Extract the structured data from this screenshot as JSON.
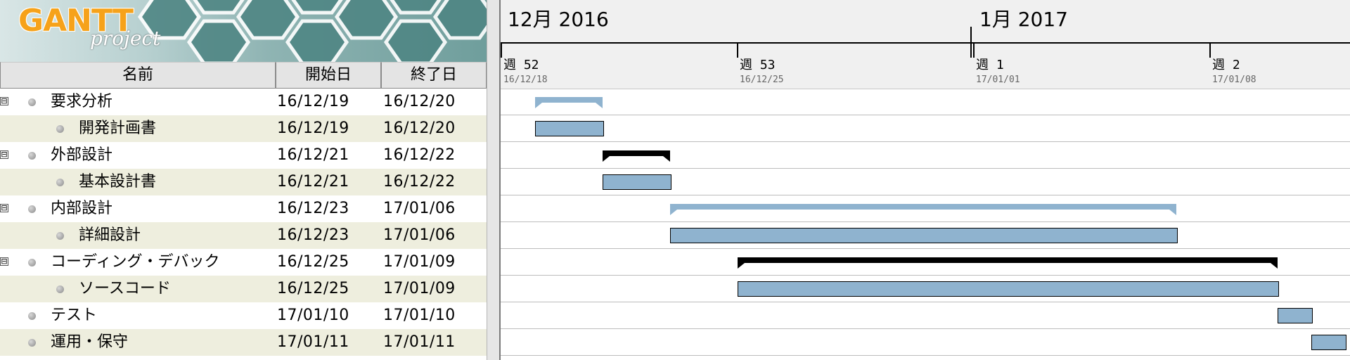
{
  "logo": {
    "word": "GANTT",
    "sub": "project"
  },
  "table": {
    "columns": {
      "name": "名前",
      "start": "開始日",
      "end": "終了日"
    },
    "collapse_glyph": "⊟",
    "rows": [
      {
        "name": "要求分析",
        "start": "16/12/19",
        "end": "16/12/20",
        "level": 0,
        "summary": true
      },
      {
        "name": "開発計画書",
        "start": "16/12/19",
        "end": "16/12/20",
        "level": 1,
        "summary": false
      },
      {
        "name": "外部設計",
        "start": "16/12/21",
        "end": "16/12/22",
        "level": 0,
        "summary": true
      },
      {
        "name": "基本設計書",
        "start": "16/12/21",
        "end": "16/12/22",
        "level": 1,
        "summary": false
      },
      {
        "name": "内部設計",
        "start": "16/12/23",
        "end": "17/01/06",
        "level": 0,
        "summary": true
      },
      {
        "name": "詳細設計",
        "start": "16/12/23",
        "end": "17/01/06",
        "level": 1,
        "summary": false
      },
      {
        "name": "コーディング・デバック",
        "start": "16/12/25",
        "end": "17/01/09",
        "level": 0,
        "summary": true
      },
      {
        "name": "ソースコード",
        "start": "16/12/25",
        "end": "17/01/09",
        "level": 1,
        "summary": false
      },
      {
        "name": "テスト",
        "start": "17/01/10",
        "end": "17/01/10",
        "level": 0,
        "summary": false
      },
      {
        "name": "運用・保守",
        "start": "17/01/11",
        "end": "17/01/11",
        "level": 0,
        "summary": false
      }
    ]
  },
  "timeline": {
    "months": [
      "12月 2016",
      "1月 2017"
    ],
    "weeks": [
      {
        "label": "週 52",
        "date": "16/12/18"
      },
      {
        "label": "週 53",
        "date": "16/12/25"
      },
      {
        "label": "週 1",
        "date": "17/01/01"
      },
      {
        "label": "週 2",
        "date": "17/01/08"
      }
    ]
  },
  "chart_data": {
    "type": "gantt",
    "tasks": [
      {
        "name": "要求分析",
        "start": "2016-12-19",
        "end": "2016-12-20",
        "summary": true,
        "color": "#8fb3cf"
      },
      {
        "name": "開発計画書",
        "start": "2016-12-19",
        "end": "2016-12-20",
        "summary": false,
        "color": "#8fb3cf"
      },
      {
        "name": "外部設計",
        "start": "2016-12-21",
        "end": "2016-12-22",
        "summary": true,
        "color": "#000000"
      },
      {
        "name": "基本設計書",
        "start": "2016-12-21",
        "end": "2016-12-22",
        "summary": false,
        "color": "#8fb3cf"
      },
      {
        "name": "内部設計",
        "start": "2016-12-23",
        "end": "2017-01-06",
        "summary": true,
        "color": "#8fb3cf"
      },
      {
        "name": "詳細設計",
        "start": "2016-12-23",
        "end": "2017-01-06",
        "summary": false,
        "color": "#8fb3cf"
      },
      {
        "name": "コーディング・デバック",
        "start": "2016-12-25",
        "end": "2017-01-09",
        "summary": true,
        "color": "#000000"
      },
      {
        "name": "ソースコード",
        "start": "2016-12-25",
        "end": "2017-01-09",
        "summary": false,
        "color": "#8fb3cf"
      },
      {
        "name": "テスト",
        "start": "2017-01-10",
        "end": "2017-01-10",
        "summary": false,
        "color": "#8fb3cf"
      },
      {
        "name": "運用・保守",
        "start": "2017-01-11",
        "end": "2017-01-11",
        "summary": false,
        "color": "#8fb3cf"
      }
    ]
  }
}
